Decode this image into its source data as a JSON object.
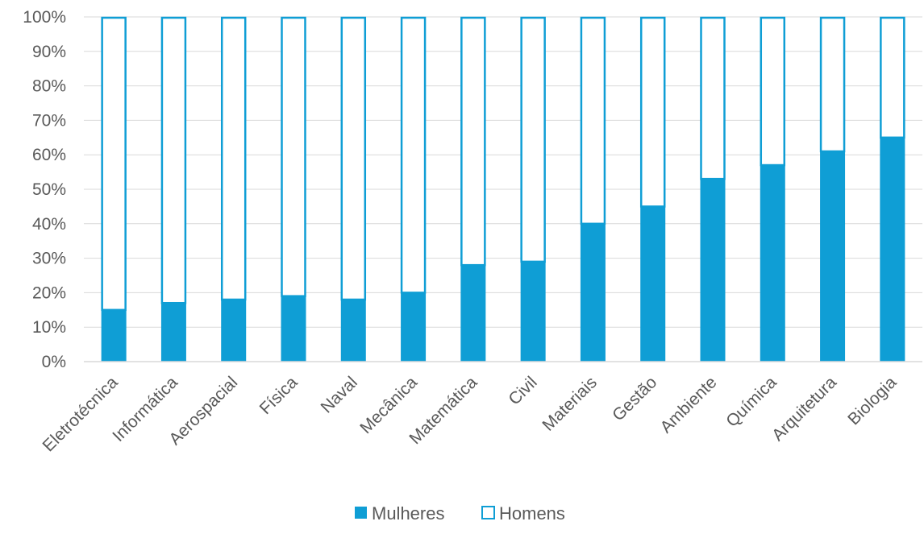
{
  "chart_data": {
    "type": "bar",
    "stacked": "percent",
    "categories": [
      "Eletrotécnica",
      "Informática",
      "Aerospacial",
      "Física",
      "Naval",
      "Mecânica",
      "Matemática",
      "Civil",
      "Materiais",
      "Gestão",
      "Ambiente",
      "Química",
      "Arquitetura",
      "Biologia"
    ],
    "series": [
      {
        "name": "Mulheres",
        "values": [
          15,
          17,
          18,
          19,
          18,
          20,
          28,
          29,
          40,
          45,
          53,
          57,
          61,
          65
        ],
        "fill": "#0f9ed5",
        "stroke": "#0f9ed5"
      },
      {
        "name": "Homens",
        "values": [
          85,
          83,
          82,
          81,
          82,
          80,
          72,
          71,
          60,
          55,
          47,
          43,
          39,
          35
        ],
        "fill": "#ffffff",
        "stroke": "#0f9ed5"
      }
    ],
    "ylim": [
      0,
      100
    ],
    "yticks": [
      "0%",
      "10%",
      "20%",
      "30%",
      "40%",
      "50%",
      "60%",
      "70%",
      "80%",
      "90%",
      "100%"
    ],
    "grid": true,
    "legend_position": "bottom"
  },
  "colors": {
    "accent": "#0f9ed5",
    "grid": "#d9d9d9",
    "text": "#595959"
  }
}
